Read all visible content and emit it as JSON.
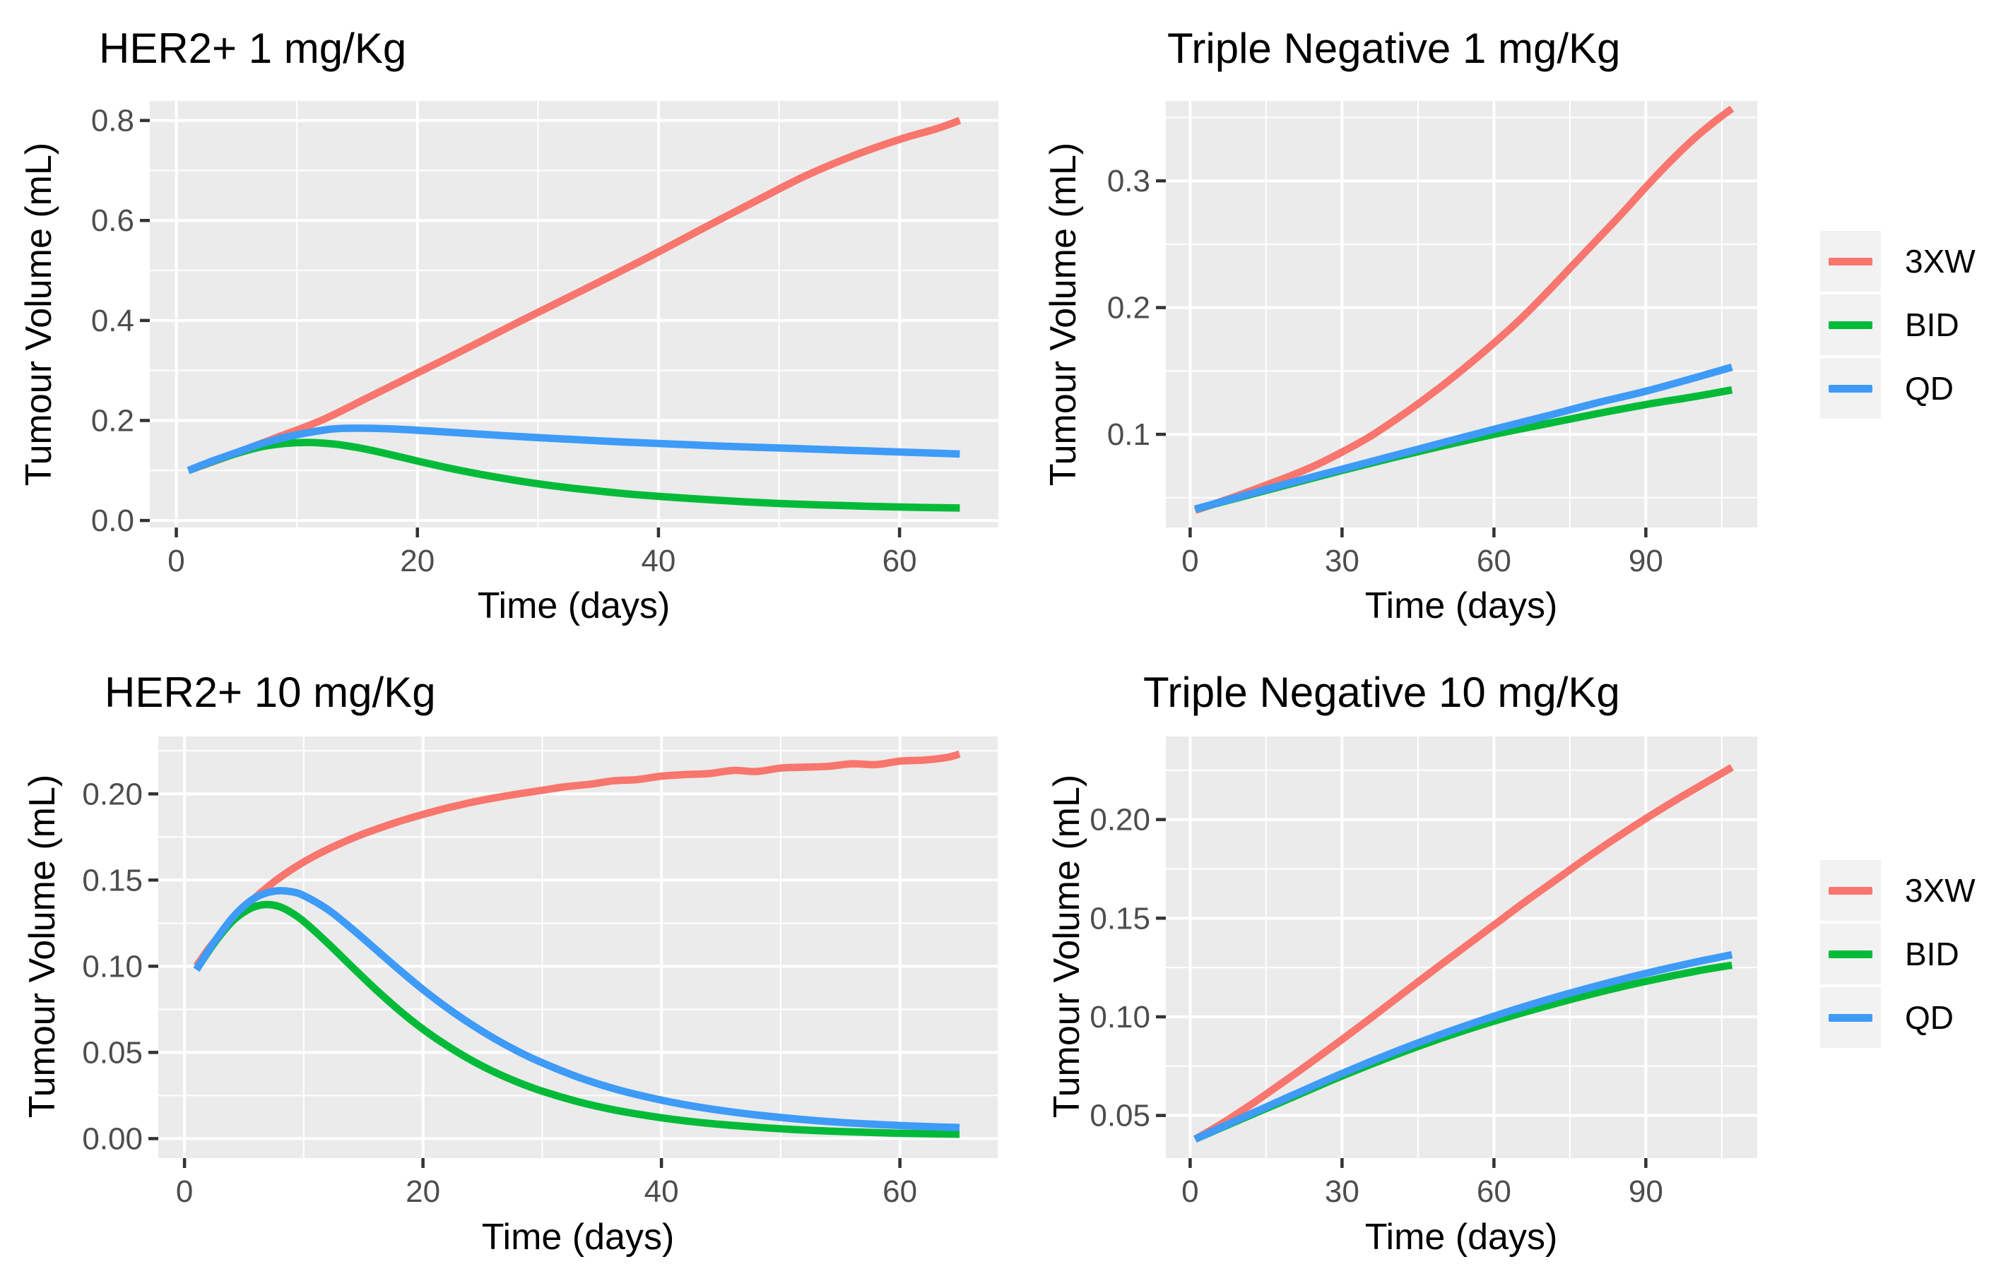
{
  "figure": {
    "background": "#FFFFFF",
    "panel_bg": "#EBEBEB",
    "grid_color": "#FFFFFF",
    "tick_color": "#333333",
    "tick_label_color": "#4D4D4D",
    "text_color": "#000000",
    "series_colors": {
      "3XW": "#F8766D",
      "BID": "#00BA38",
      "QD": "#3E9BF8"
    }
  },
  "legend": {
    "key_bg": "#F2F2F2",
    "entries": [
      {
        "label": "3XW",
        "color": "#F8766D"
      },
      {
        "label": "BID",
        "color": "#00BA38"
      },
      {
        "label": "QD",
        "color": "#3E9BF8"
      }
    ]
  },
  "chart_data": [
    {
      "id": "her2-1mgkg",
      "type": "line",
      "title": "HER2+ 1 mg/Kg",
      "xlabel": "Time (days)",
      "ylabel": "Tumour Volume (mL)",
      "xlim": [
        -2.2,
        68.2
      ],
      "ylim": [
        -0.014,
        0.839
      ],
      "xticks": [
        0,
        20,
        40,
        60
      ],
      "xtick_labels": [
        "0",
        "20",
        "40",
        "60"
      ],
      "xticks_minor": [
        10,
        30,
        50
      ],
      "yticks": [
        0.0,
        0.2,
        0.4,
        0.6,
        0.8
      ],
      "ytick_labels": [
        "0.0",
        "0.2",
        "0.4",
        "0.6",
        "0.8"
      ],
      "yticks_minor": [
        0.1,
        0.3,
        0.5,
        0.7
      ],
      "grid": true,
      "legend_position": "right",
      "series": [
        {
          "name": "3XW",
          "x": [
            1,
            4,
            8,
            12,
            16,
            20,
            24,
            28,
            32,
            36,
            40,
            44,
            48,
            52,
            56,
            60,
            63,
            65
          ],
          "y": [
            0.1,
            0.126,
            0.163,
            0.2,
            0.247,
            0.295,
            0.343,
            0.392,
            0.44,
            0.488,
            0.537,
            0.588,
            0.638,
            0.687,
            0.728,
            0.762,
            0.783,
            0.8
          ]
        },
        {
          "name": "BID",
          "x": [
            1,
            3,
            5,
            7,
            9,
            11,
            13,
            15,
            17,
            20,
            23,
            26,
            29,
            32,
            35,
            38,
            42,
            46,
            50,
            55,
            60,
            65
          ],
          "y": [
            0.1,
            0.118,
            0.134,
            0.147,
            0.154,
            0.156,
            0.153,
            0.146,
            0.136,
            0.119,
            0.103,
            0.089,
            0.077,
            0.067,
            0.059,
            0.052,
            0.045,
            0.039,
            0.034,
            0.03,
            0.027,
            0.025
          ]
        },
        {
          "name": "QD",
          "x": [
            1,
            3,
            5,
            7,
            9,
            11,
            13,
            15,
            18,
            21,
            25,
            29,
            33,
            37,
            41,
            45,
            50,
            55,
            60,
            65
          ],
          "y": [
            0.1,
            0.119,
            0.136,
            0.153,
            0.166,
            0.176,
            0.183,
            0.1845,
            0.183,
            0.179,
            0.173,
            0.167,
            0.162,
            0.157,
            0.153,
            0.149,
            0.145,
            0.141,
            0.137,
            0.133
          ]
        }
      ]
    },
    {
      "id": "tn-1mgkg",
      "type": "line",
      "title": "Triple Negative 1 mg/Kg",
      "xlabel": "Time (days)",
      "ylabel": "Tumour Volume (mL)",
      "xlim": [
        -4.8,
        112.0
      ],
      "ylim": [
        0.0265,
        0.363
      ],
      "xticks": [
        0,
        30,
        60,
        90
      ],
      "xtick_labels": [
        "0",
        "30",
        "60",
        "90"
      ],
      "xticks_minor": [
        15,
        45,
        75,
        105
      ],
      "yticks": [
        0.1,
        0.2,
        0.3
      ],
      "ytick_labels": [
        "0.1",
        "0.2",
        "0.3"
      ],
      "yticks_minor": [
        0.05,
        0.15,
        0.25,
        0.35
      ],
      "grid": true,
      "legend_position": "right",
      "series": [
        {
          "name": "3XW",
          "x": [
            1,
            5,
            10,
            15,
            20,
            25,
            30,
            35,
            40,
            45,
            50,
            55,
            60,
            65,
            70,
            75,
            80,
            85,
            90,
            95,
            100,
            104,
            107
          ],
          "y": [
            0.04,
            0.0455,
            0.0525,
            0.06,
            0.0675,
            0.076,
            0.086,
            0.097,
            0.11,
            0.124,
            0.139,
            0.155,
            0.172,
            0.19,
            0.21,
            0.231,
            0.252,
            0.273,
            0.295,
            0.316,
            0.335,
            0.348,
            0.357
          ]
        },
        {
          "name": "BID",
          "x": [
            1,
            10,
            20,
            30,
            40,
            50,
            60,
            70,
            80,
            90,
            100,
            107
          ],
          "y": [
            0.041,
            0.0505,
            0.061,
            0.0715,
            0.0815,
            0.091,
            0.1,
            0.108,
            0.116,
            0.1235,
            0.13,
            0.135
          ]
        },
        {
          "name": "QD",
          "x": [
            1,
            10,
            20,
            30,
            40,
            50,
            60,
            70,
            80,
            90,
            100,
            107
          ],
          "y": [
            0.041,
            0.051,
            0.062,
            0.0725,
            0.083,
            0.0935,
            0.104,
            0.114,
            0.1245,
            0.134,
            0.145,
            0.153
          ]
        }
      ]
    },
    {
      "id": "her2-10mgkg",
      "type": "line",
      "title": "HER2+ 10 mg/Kg",
      "xlabel": "Time (days)",
      "ylabel": "Tumour Volume (mL)",
      "xlim": [
        -2.2,
        68.2
      ],
      "ylim": [
        -0.0113,
        0.2333
      ],
      "xticks": [
        0,
        20,
        40,
        60
      ],
      "xtick_labels": [
        "0",
        "20",
        "40",
        "60"
      ],
      "xticks_minor": [
        10,
        30,
        50
      ],
      "yticks": [
        0.0,
        0.05,
        0.1,
        0.15,
        0.2
      ],
      "ytick_labels": [
        "0.00",
        "0.05",
        "0.10",
        "0.15",
        "0.20"
      ],
      "yticks_minor": [
        0.025,
        0.075,
        0.125,
        0.175,
        0.225
      ],
      "grid": true,
      "legend_position": "right",
      "series": [
        {
          "name": "3XW",
          "x": [
            1,
            2,
            3,
            4,
            5,
            6,
            7,
            8,
            9,
            10,
            11,
            12,
            13,
            14,
            15,
            16,
            17,
            18,
            19,
            20,
            21,
            22,
            23,
            24,
            25,
            26,
            28,
            30,
            32,
            34,
            36,
            38,
            40,
            42,
            44,
            46,
            48,
            50,
            52,
            54,
            56,
            58,
            60,
            62,
            64,
            65
          ],
          "y": [
            0.1,
            0.11,
            0.1185,
            0.1265,
            0.1338,
            0.1403,
            0.1462,
            0.1515,
            0.1562,
            0.1605,
            0.1643,
            0.1678,
            0.171,
            0.174,
            0.1768,
            0.1793,
            0.1817,
            0.184,
            0.1861,
            0.1881,
            0.19,
            0.1918,
            0.1934,
            0.195,
            0.1964,
            0.1977,
            0.2,
            0.2021,
            0.2042,
            0.2056,
            0.2076,
            0.2083,
            0.2103,
            0.2112,
            0.2118,
            0.2136,
            0.213,
            0.215,
            0.2155,
            0.216,
            0.2175,
            0.217,
            0.219,
            0.2196,
            0.2212,
            0.2232
          ]
        },
        {
          "name": "BID",
          "x": [
            1,
            2,
            3,
            4,
            5,
            6,
            7,
            8,
            9,
            10,
            12,
            14,
            16,
            18,
            20,
            22,
            24,
            26,
            28,
            30,
            33,
            36,
            39,
            42,
            45,
            48,
            51,
            54,
            57,
            60,
            63,
            65
          ],
          "y": [
            0.098,
            0.1085,
            0.118,
            0.126,
            0.1315,
            0.1348,
            0.1358,
            0.1345,
            0.131,
            0.126,
            0.1135,
            0.1,
            0.0868,
            0.0745,
            0.0635,
            0.054,
            0.0457,
            0.0386,
            0.0326,
            0.0275,
            0.0214,
            0.0167,
            0.0131,
            0.0103,
            0.0082,
            0.0066,
            0.0053,
            0.0044,
            0.0037,
            0.0031,
            0.0027,
            0.0025
          ]
        },
        {
          "name": "QD",
          "x": [
            1,
            2,
            3,
            4,
            5,
            6,
            7,
            8,
            9,
            10,
            12,
            14,
            16,
            18,
            20,
            22,
            24,
            26,
            28,
            30,
            33,
            36,
            39,
            42,
            45,
            48,
            51,
            54,
            57,
            60,
            63,
            65
          ],
          "y": [
            0.098,
            0.109,
            0.119,
            0.128,
            0.135,
            0.14,
            0.1428,
            0.1438,
            0.1432,
            0.141,
            0.133,
            0.122,
            0.11,
            0.098,
            0.0865,
            0.076,
            0.0665,
            0.058,
            0.0505,
            0.044,
            0.0357,
            0.029,
            0.0238,
            0.0196,
            0.0163,
            0.0137,
            0.0116,
            0.0099,
            0.0086,
            0.0076,
            0.0068,
            0.0064
          ]
        }
      ]
    },
    {
      "id": "tn-10mgkg",
      "type": "line",
      "title": "Triple Negative 10 mg/Kg",
      "xlabel": "Time (days)",
      "ylabel": "Tumour Volume (mL)",
      "xlim": [
        -4.8,
        112.0
      ],
      "ylim": [
        0.0284,
        0.2421
      ],
      "xticks": [
        0,
        30,
        60,
        90
      ],
      "xtick_labels": [
        "0",
        "30",
        "60",
        "90"
      ],
      "xticks_minor": [
        15,
        45,
        75,
        105
      ],
      "yticks": [
        0.05,
        0.1,
        0.15,
        0.2
      ],
      "ytick_labels": [
        "0.05",
        "0.10",
        "0.15",
        "0.20"
      ],
      "yticks_minor": [
        0.075,
        0.125,
        0.175,
        0.225
      ],
      "grid": true,
      "legend_position": "right",
      "series": [
        {
          "name": "3XW",
          "x": [
            1,
            6,
            12,
            18,
            24,
            30,
            36,
            42,
            48,
            54,
            60,
            66,
            72,
            78,
            84,
            90,
            96,
            102,
            107
          ],
          "y": [
            0.038,
            0.0455,
            0.0555,
            0.0662,
            0.0772,
            0.0885,
            0.1,
            0.1118,
            0.1235,
            0.135,
            0.1465,
            0.158,
            0.169,
            0.18,
            0.1905,
            0.2005,
            0.21,
            0.219,
            0.2265
          ]
        },
        {
          "name": "BID",
          "x": [
            1,
            10,
            20,
            30,
            40,
            50,
            60,
            70,
            80,
            90,
            100,
            107
          ],
          "y": [
            0.038,
            0.048,
            0.059,
            0.07,
            0.0802,
            0.0895,
            0.0978,
            0.1052,
            0.112,
            0.118,
            0.1232,
            0.1262
          ]
        },
        {
          "name": "QD",
          "x": [
            1,
            10,
            20,
            30,
            40,
            50,
            60,
            70,
            80,
            90,
            100,
            107
          ],
          "y": [
            0.038,
            0.0485,
            0.06,
            0.0713,
            0.0818,
            0.0915,
            0.1003,
            0.1083,
            0.1155,
            0.122,
            0.1278,
            0.1315
          ]
        }
      ]
    }
  ]
}
